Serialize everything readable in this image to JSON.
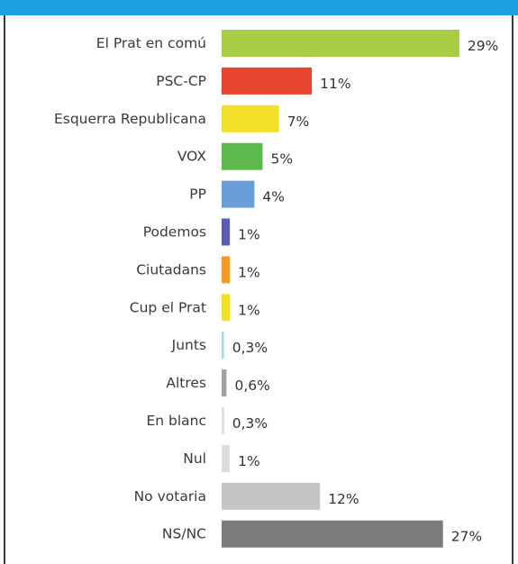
{
  "chart_data": {
    "type": "bar",
    "orientation": "horizontal",
    "categories": [
      "El Prat en comú",
      "PSC-CP",
      "Esquerra Republicana",
      "VOX",
      "PP",
      "Podemos",
      "Ciutadans",
      "Cup el Prat",
      "Junts",
      "Altres",
      "En blanc",
      "Nul",
      "No votaria",
      "NS/NC"
    ],
    "values": [
      29,
      11,
      7,
      5,
      4,
      1,
      1,
      1,
      0.3,
      0.6,
      0.3,
      1,
      12,
      27
    ],
    "value_labels": [
      "29%",
      "11%",
      "7%",
      "5%",
      "4%",
      "1%",
      "1%",
      "1%",
      "0,3%",
      "0,6%",
      "0,3%",
      "1%",
      "12%",
      "27%"
    ],
    "colors": [
      "#a8cc44",
      "#e8452e",
      "#f2e02a",
      "#5cba4c",
      "#6a9ed8",
      "#5a5cae",
      "#f09a2a",
      "#f2e02a",
      "#a8dce4",
      "#a2a2a2",
      "#dcdcdc",
      "#dcdcdc",
      "#c4c4c4",
      "#7b7b7b"
    ],
    "xlim": [
      0,
      30
    ],
    "grid": false,
    "legend": "none"
  }
}
